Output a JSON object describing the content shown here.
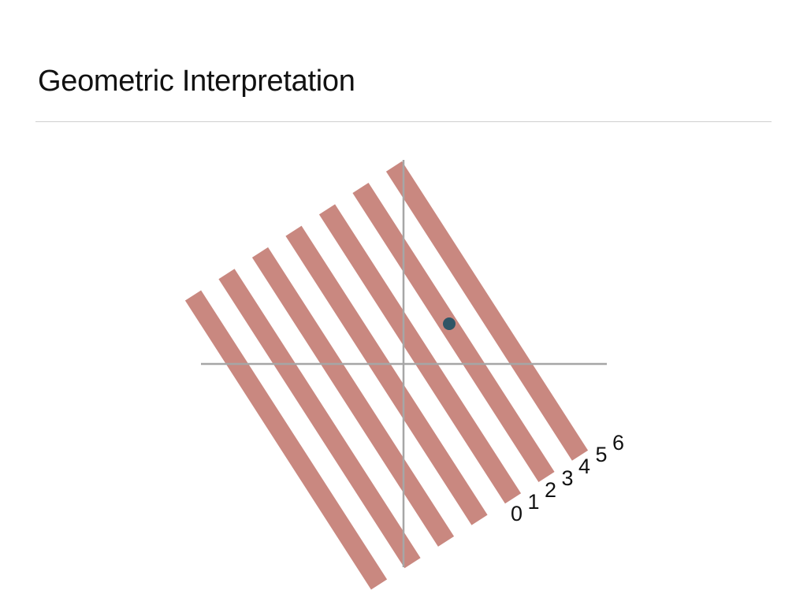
{
  "slide": {
    "title": "Geometric Interpretation"
  },
  "diagram": {
    "stripe_color": "#c98880",
    "axis_color": "#a6a6a6",
    "point_color": "#2f5566",
    "stripes": [
      {
        "label": "0"
      },
      {
        "label": "1"
      },
      {
        "label": "2"
      },
      {
        "label": "3"
      },
      {
        "label": "4"
      },
      {
        "label": "5"
      },
      {
        "label": "6"
      }
    ]
  }
}
